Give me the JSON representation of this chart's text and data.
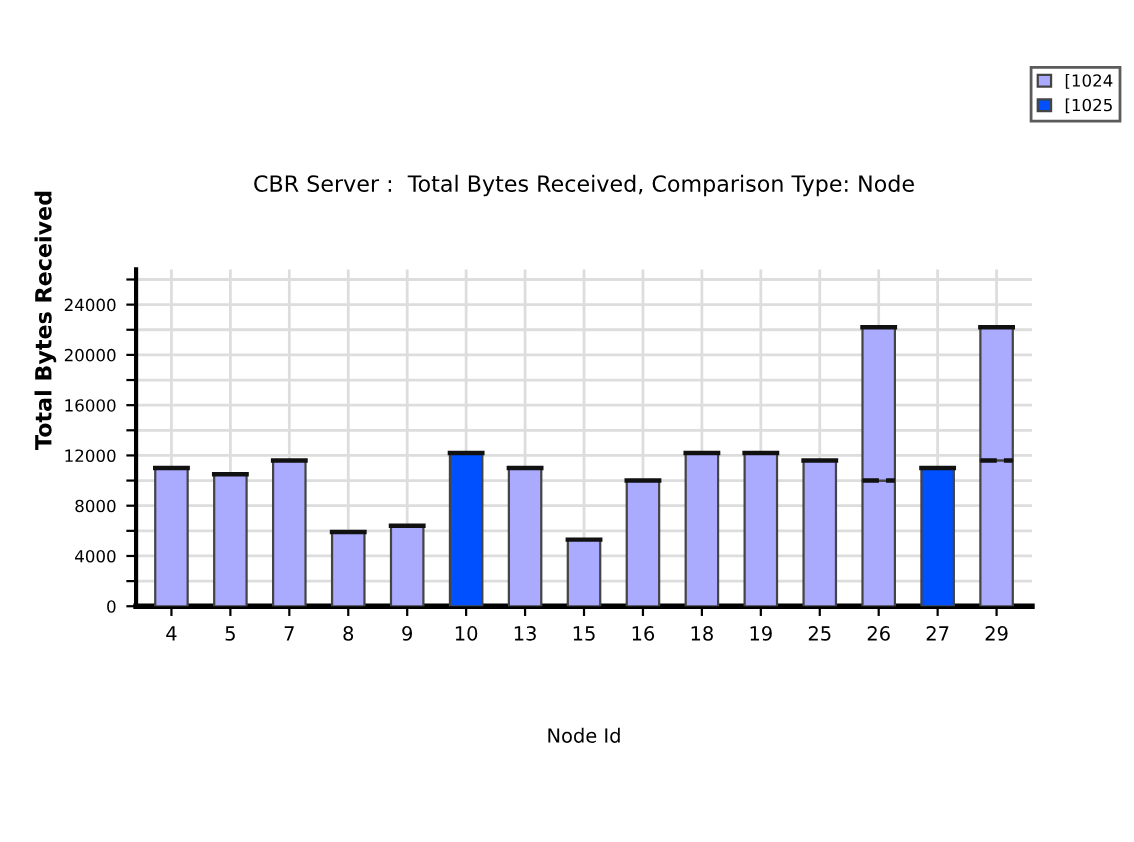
{
  "chart_data": {
    "type": "bar",
    "stacked": true,
    "title": "CBR Server :  Total Bytes Received, Comparison Type: Node",
    "xlabel": "Node Id",
    "ylabel": "Total Bytes Received",
    "categories": [
      "4",
      "5",
      "7",
      "8",
      "9",
      "10",
      "13",
      "15",
      "16",
      "18",
      "19",
      "25",
      "26",
      "27",
      "29"
    ],
    "series": [
      {
        "name": "[1024",
        "color": "#aaaaff",
        "values": [
          11000,
          10500,
          11600,
          5900,
          6400,
          null,
          11000,
          5300,
          10000,
          12200,
          12200,
          11600,
          10000,
          null,
          11600
        ]
      },
      {
        "name": "[1025",
        "color": "#0050ff",
        "values": [
          null,
          null,
          null,
          null,
          null,
          12200,
          null,
          null,
          null,
          null,
          null,
          null,
          null,
          11000,
          null
        ]
      },
      {
        "color": "#aaaaff",
        "values": [
          null,
          null,
          null,
          null,
          null,
          null,
          null,
          null,
          null,
          null,
          null,
          null,
          12200,
          null,
          10600
        ]
      }
    ],
    "ylim": [
      0,
      26800
    ],
    "yticks": [
      0,
      {
        "value": 2000,
        "label": null
      },
      4000,
      {
        "value": 6000,
        "label": null
      },
      8000,
      {
        "value": 10000,
        "label": null
      },
      12000,
      {
        "value": 14000,
        "label": null
      },
      16000,
      {
        "value": 18000,
        "label": null
      },
      20000,
      {
        "value": 22000,
        "label": null
      },
      24000,
      {
        "value": 26000,
        "label": null
      }
    ],
    "grid": true,
    "legend": "top right"
  }
}
